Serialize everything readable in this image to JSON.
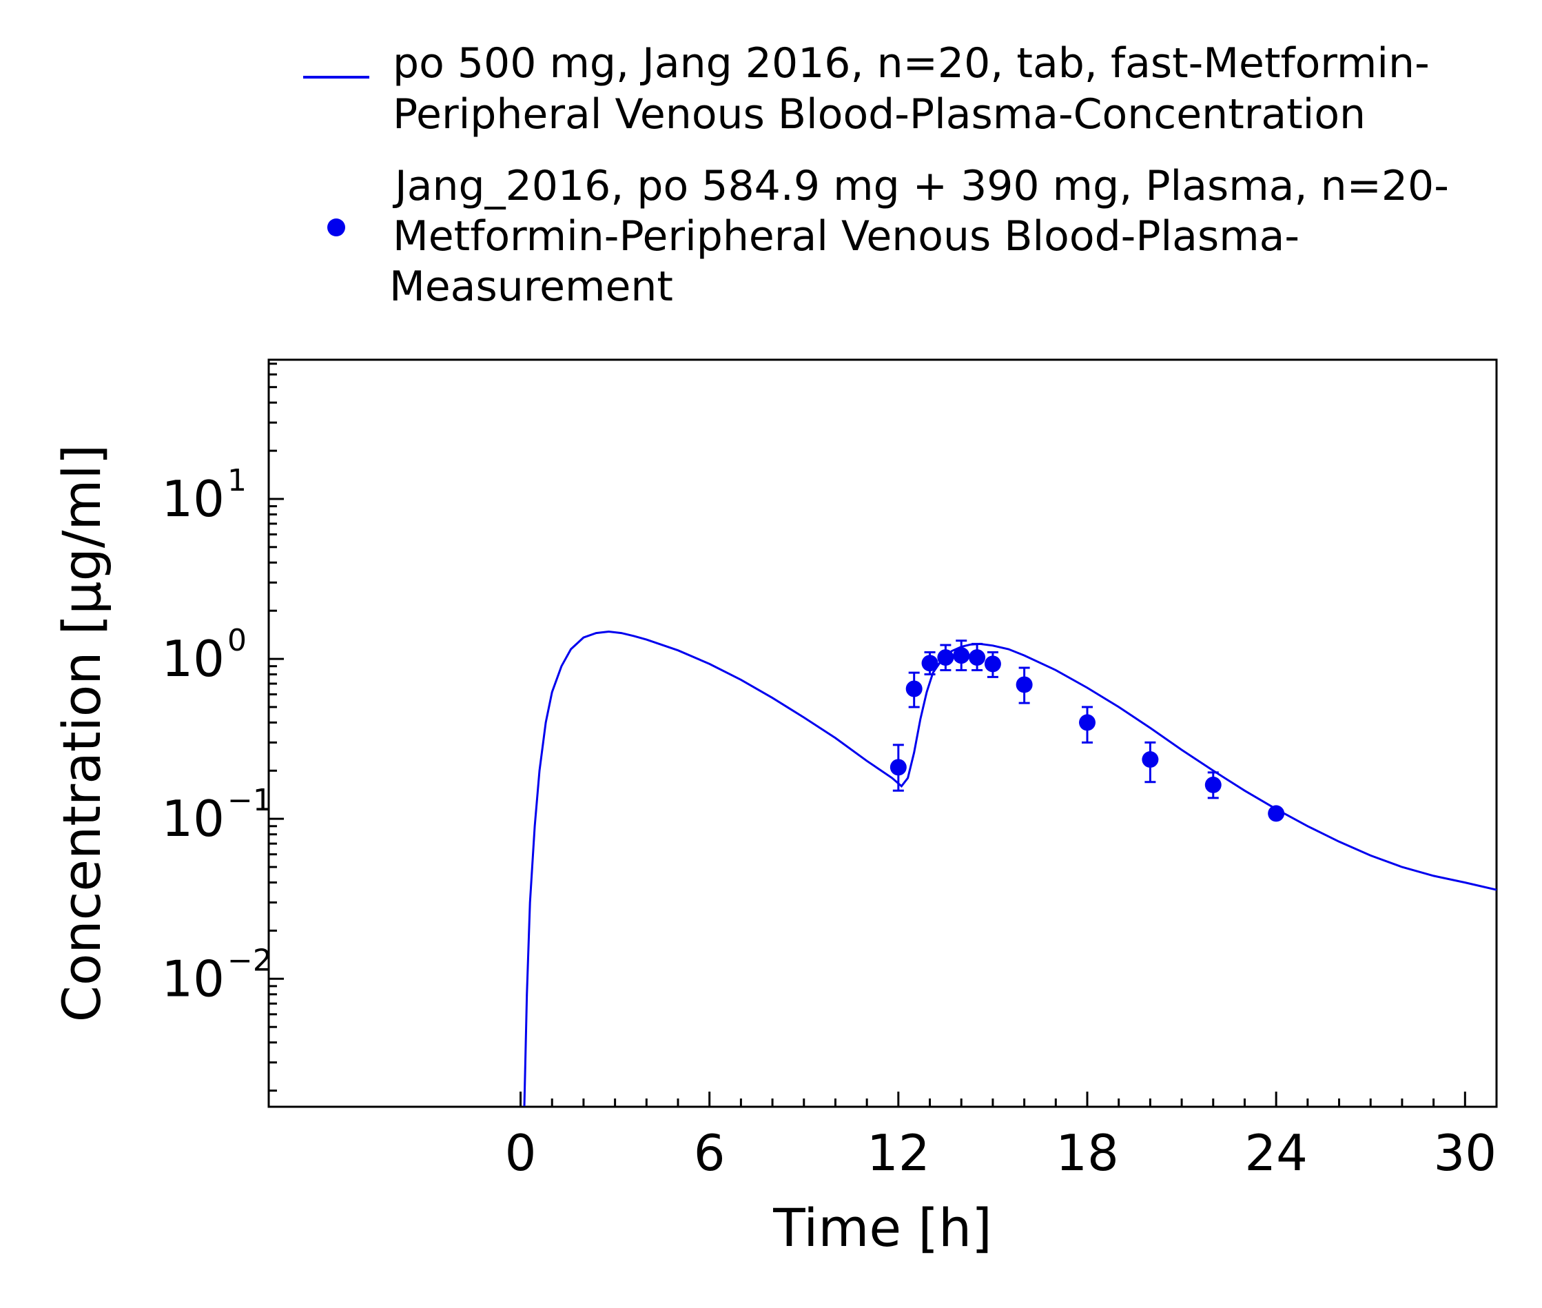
{
  "chart_data": {
    "type": "line",
    "xlabel": "Time [h]",
    "ylabel": "Concentration [µg/ml]",
    "xlim": [
      -8,
      31
    ],
    "ylim_log10": [
      -2.8,
      1.87
    ],
    "yscale": "log",
    "grid": false,
    "legend_placement": "top",
    "x_ticks": [
      0,
      6,
      12,
      18,
      24,
      30
    ],
    "x_tick_labels": [
      "0",
      "6",
      "12",
      "18",
      "24",
      "30"
    ],
    "y_ticks": [
      {
        "value": 10,
        "base": "10",
        "exp": "1"
      },
      {
        "value": 1,
        "base": "10",
        "exp": "0"
      },
      {
        "value": 0.1,
        "base": "10",
        "exp": "−1"
      },
      {
        "value": 0.01,
        "base": "10",
        "exp": "−2"
      }
    ],
    "series": [
      {
        "kind": "line",
        "name_lines": [
          "po 500 mg, Jang 2016, n=20, tab, fast-Metformin-",
          "Peripheral Venous Blood-Plasma-Concentration"
        ],
        "color": "#0000ee",
        "x": [
          0.12,
          0.2,
          0.3,
          0.45,
          0.6,
          0.8,
          1.0,
          1.3,
          1.6,
          2.0,
          2.4,
          2.8,
          3.2,
          3.6,
          4.0,
          5.0,
          6.0,
          7.0,
          8.0,
          9.0,
          10.0,
          11.0,
          11.8,
          12.1,
          12.3,
          12.5,
          12.7,
          12.9,
          13.1,
          13.4,
          13.7,
          14.0,
          14.3,
          14.6,
          15.0,
          15.5,
          16.0,
          17.0,
          18.0,
          19.0,
          20.0,
          21.0,
          22.0,
          23.0,
          24.0,
          25.0,
          26.0,
          27.0,
          28.0,
          29.0,
          30.0,
          31.0
        ],
        "y": [
          0.0016,
          0.008,
          0.03,
          0.09,
          0.2,
          0.4,
          0.62,
          0.9,
          1.15,
          1.36,
          1.45,
          1.48,
          1.45,
          1.39,
          1.32,
          1.13,
          0.93,
          0.74,
          0.57,
          0.43,
          0.32,
          0.23,
          0.18,
          0.16,
          0.18,
          0.26,
          0.42,
          0.62,
          0.82,
          1.0,
          1.12,
          1.19,
          1.23,
          1.24,
          1.21,
          1.15,
          1.05,
          0.85,
          0.66,
          0.5,
          0.37,
          0.27,
          0.2,
          0.15,
          0.115,
          0.09,
          0.072,
          0.059,
          0.05,
          0.044,
          0.04,
          0.036
        ]
      },
      {
        "kind": "scatter",
        "name_lines": [
          "Jang_2016, po 584.9 mg + 390 mg, Plasma, n=20-",
          "Metformin-Peripheral Venous Blood-Plasma-",
          "Measurement"
        ],
        "color": "#0000ee",
        "points": [
          {
            "x": 12.0,
            "y": 0.21,
            "lo": 0.15,
            "hi": 0.29
          },
          {
            "x": 12.5,
            "y": 0.65,
            "lo": 0.5,
            "hi": 0.82
          },
          {
            "x": 13.0,
            "y": 0.94,
            "lo": 0.8,
            "hi": 1.1
          },
          {
            "x": 13.5,
            "y": 1.02,
            "lo": 0.85,
            "hi": 1.22
          },
          {
            "x": 14.0,
            "y": 1.05,
            "lo": 0.85,
            "hi": 1.3
          },
          {
            "x": 14.5,
            "y": 1.02,
            "lo": 0.85,
            "hi": 1.24
          },
          {
            "x": 15.0,
            "y": 0.93,
            "lo": 0.77,
            "hi": 1.1
          },
          {
            "x": 16.0,
            "y": 0.69,
            "lo": 0.53,
            "hi": 0.88
          },
          {
            "x": 18.0,
            "y": 0.4,
            "lo": 0.3,
            "hi": 0.5
          },
          {
            "x": 20.0,
            "y": 0.235,
            "lo": 0.17,
            "hi": 0.3
          },
          {
            "x": 22.0,
            "y": 0.163,
            "lo": 0.135,
            "hi": 0.195
          },
          {
            "x": 24.0,
            "y": 0.108,
            "lo": 0.108,
            "hi": 0.108
          }
        ]
      }
    ]
  }
}
